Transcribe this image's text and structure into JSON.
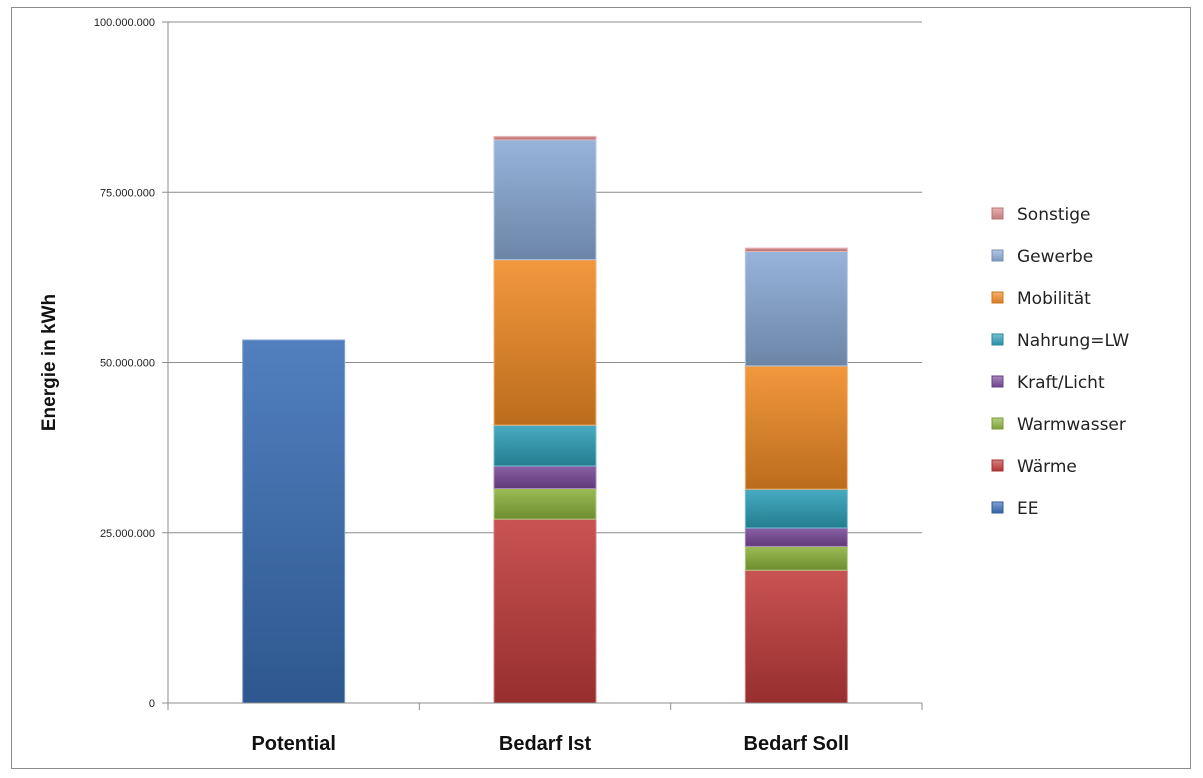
{
  "chart_data": {
    "type": "bar",
    "stacked": true,
    "categories": [
      "Potential",
      "Bedarf Ist",
      "Bedarf Soll"
    ],
    "ylabel": "Energie in kWh",
    "xlabel": "",
    "title": "",
    "ylim": [
      0,
      100000000
    ],
    "yticks": [
      0,
      25000000,
      50000000,
      75000000,
      100000000
    ],
    "ytick_labels": [
      "0",
      "25.000.000",
      "50.000.000",
      "75.000.000",
      "100.000.000"
    ],
    "grid": true,
    "legend_position": "right",
    "series": [
      {
        "name": "EE",
        "color": "#3a6fb6",
        "values": [
          53300000,
          0,
          0
        ]
      },
      {
        "name": "Wärme",
        "color": "#c23b3b",
        "values": [
          0,
          27000000,
          19500000
        ]
      },
      {
        "name": "Warmwasser",
        "color": "#8db33e",
        "values": [
          0,
          4500000,
          3500000
        ]
      },
      {
        "name": "Kraft/Licht",
        "color": "#7a4a9a",
        "values": [
          0,
          3300000,
          2700000
        ]
      },
      {
        "name": "Nahrung=LW",
        "color": "#2ea0b8",
        "values": [
          0,
          6000000,
          5700000
        ]
      },
      {
        "name": "Mobilität",
        "color": "#f08a24",
        "values": [
          0,
          24300000,
          18100000
        ]
      },
      {
        "name": "Gewerbe",
        "color": "#8aaad6",
        "values": [
          0,
          17600000,
          16800000
        ]
      },
      {
        "name": "Sonstige",
        "color": "#d98a8a",
        "values": [
          0,
          500000,
          500000
        ]
      }
    ]
  }
}
